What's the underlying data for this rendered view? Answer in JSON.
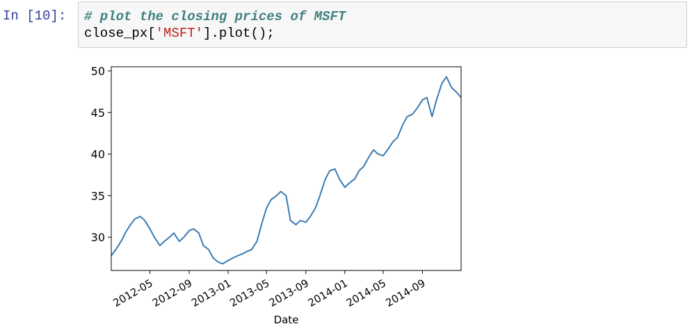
{
  "cell": {
    "prompt": "In [10]:",
    "code_comment": "# plot the closing prices of MSFT",
    "code_prefix": "close_px[",
    "code_string": "'MSFT'",
    "code_suffix": "].plot();"
  },
  "chart_data": {
    "type": "line",
    "xlabel": "Date",
    "ylabel": "",
    "title": "",
    "ylim": [
      26,
      50.5
    ],
    "xlim": [
      "2012-01-01",
      "2014-12-31"
    ],
    "y_ticks": [
      30,
      35,
      40,
      45,
      50
    ],
    "y_tick_labels": [
      "30",
      "35",
      "40",
      "45",
      "50"
    ],
    "x_ticks": [
      "2012-05-01",
      "2012-09-01",
      "2013-01-01",
      "2013-05-01",
      "2013-09-01",
      "2014-01-01",
      "2014-05-01",
      "2014-09-01"
    ],
    "x_tick_labels": [
      "2012-05",
      "2012-09",
      "2013-01",
      "2013-05",
      "2013-09",
      "2014-01",
      "2014-05",
      "2014-09"
    ],
    "grid": false,
    "line_color": "#3a7ab0",
    "series": [
      {
        "x": [
          "2012-01-01",
          "2012-01-15",
          "2012-02-01",
          "2012-02-15",
          "2012-03-01",
          "2012-03-15",
          "2012-04-01",
          "2012-04-15",
          "2012-05-01",
          "2012-05-15",
          "2012-06-01",
          "2012-06-15",
          "2012-07-01",
          "2012-07-15",
          "2012-08-01",
          "2012-08-15",
          "2012-09-01",
          "2012-09-15",
          "2012-10-01",
          "2012-10-15",
          "2012-11-01",
          "2012-11-15",
          "2012-12-01",
          "2012-12-15",
          "2013-01-01",
          "2013-01-15",
          "2013-02-01",
          "2013-02-15",
          "2013-03-01",
          "2013-03-15",
          "2013-04-01",
          "2013-04-15",
          "2013-05-01",
          "2013-05-15",
          "2013-06-01",
          "2013-06-15",
          "2013-07-01",
          "2013-07-15",
          "2013-08-01",
          "2013-08-15",
          "2013-09-01",
          "2013-09-15",
          "2013-10-01",
          "2013-10-15",
          "2013-11-01",
          "2013-11-15",
          "2013-12-01",
          "2013-12-15",
          "2014-01-01",
          "2014-01-15",
          "2014-02-01",
          "2014-02-15",
          "2014-03-01",
          "2014-03-15",
          "2014-04-01",
          "2014-04-15",
          "2014-05-01",
          "2014-05-15",
          "2014-06-01",
          "2014-06-15",
          "2014-07-01",
          "2014-07-15",
          "2014-08-01",
          "2014-08-15",
          "2014-09-01",
          "2014-09-15",
          "2014-10-01",
          "2014-10-15",
          "2014-11-01",
          "2014-11-15",
          "2014-12-01",
          "2014-12-15",
          "2014-12-31"
        ],
        "values": [
          27.8,
          28.5,
          29.5,
          30.6,
          31.5,
          32.2,
          32.5,
          32.0,
          31.0,
          30.0,
          29.0,
          29.5,
          30.0,
          30.5,
          29.5,
          30.0,
          30.8,
          31.0,
          30.5,
          29.0,
          28.5,
          27.5,
          27.0,
          26.8,
          27.2,
          27.5,
          27.8,
          28.0,
          28.3,
          28.5,
          29.5,
          31.5,
          33.5,
          34.5,
          35.0,
          35.5,
          35.0,
          32.0,
          31.5,
          32.0,
          31.8,
          32.5,
          33.5,
          35.0,
          37.0,
          38.0,
          38.2,
          37.0,
          36.0,
          36.5,
          37.0,
          38.0,
          38.5,
          39.5,
          40.5,
          40.0,
          39.8,
          40.5,
          41.5,
          42.0,
          43.5,
          44.5,
          44.8,
          45.5,
          46.5,
          46.8,
          44.5,
          46.5,
          48.5,
          49.3,
          48.0,
          47.5,
          46.8
        ]
      }
    ]
  }
}
